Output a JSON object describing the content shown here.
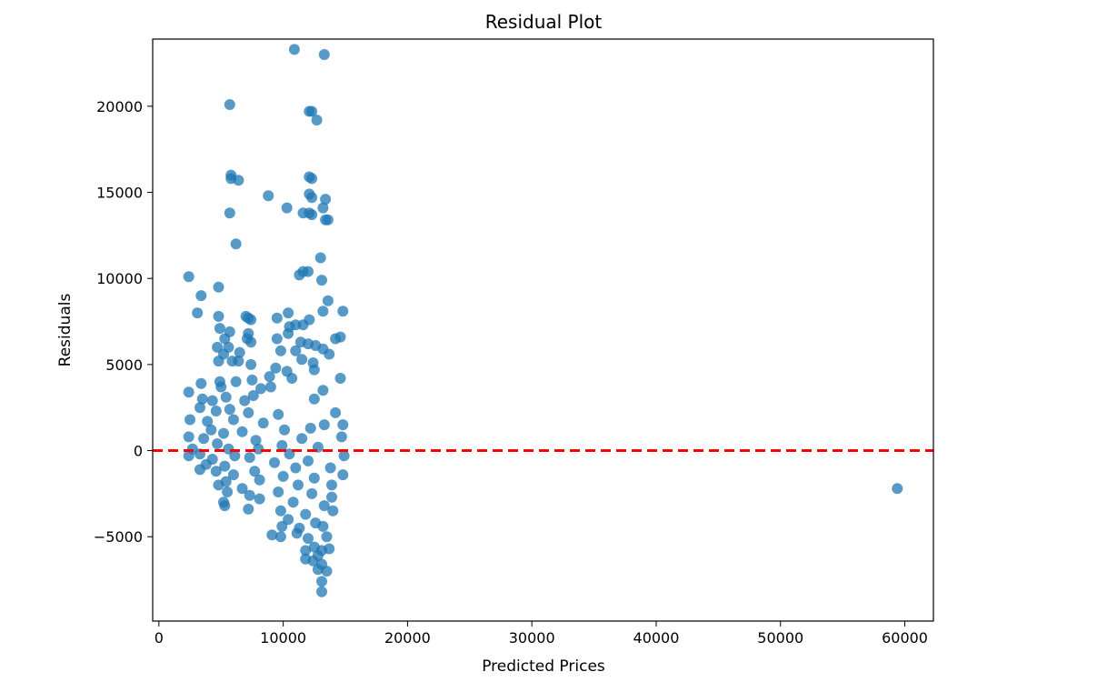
{
  "chart_data": {
    "type": "scatter",
    "title": "Residual Plot",
    "xlabel": "Predicted Prices",
    "ylabel": "Residuals",
    "xlim": [
      -500,
      62300
    ],
    "ylim": [
      -9900,
      23900
    ],
    "xticks": [
      {
        "value": 0,
        "label": "0"
      },
      {
        "value": 10000,
        "label": "10000"
      },
      {
        "value": 20000,
        "label": "20000"
      },
      {
        "value": 30000,
        "label": "30000"
      },
      {
        "value": 40000,
        "label": "40000"
      },
      {
        "value": 50000,
        "label": "50000"
      },
      {
        "value": 60000,
        "label": "60000"
      }
    ],
    "yticks": [
      {
        "value": -5000,
        "label": "−5000"
      },
      {
        "value": 0,
        "label": "0"
      },
      {
        "value": 5000,
        "label": "5000"
      },
      {
        "value": 10000,
        "label": "10000"
      },
      {
        "value": 15000,
        "label": "15000"
      },
      {
        "value": 20000,
        "label": "20000"
      }
    ],
    "grid": false,
    "reference_line": {
      "y": 0,
      "style": "dashed",
      "color": "#ff0000"
    },
    "series": [
      {
        "color": "#1f77b4",
        "points": [
          [
            10900,
            23300
          ],
          [
            13300,
            23000
          ],
          [
            5700,
            20100
          ],
          [
            12100,
            19700
          ],
          [
            12300,
            19700
          ],
          [
            12700,
            19200
          ],
          [
            5800,
            16000
          ],
          [
            5800,
            15800
          ],
          [
            6400,
            15700
          ],
          [
            12100,
            15900
          ],
          [
            12300,
            15800
          ],
          [
            8800,
            14800
          ],
          [
            12100,
            14900
          ],
          [
            12300,
            14700
          ],
          [
            13400,
            14600
          ],
          [
            10300,
            14100
          ],
          [
            13200,
            14100
          ],
          [
            5700,
            13800
          ],
          [
            11600,
            13800
          ],
          [
            12100,
            13800
          ],
          [
            12300,
            13700
          ],
          [
            13400,
            13400
          ],
          [
            13600,
            13400
          ],
          [
            6200,
            12000
          ],
          [
            13000,
            11200
          ],
          [
            12000,
            10400
          ],
          [
            11600,
            10400
          ],
          [
            11300,
            10200
          ],
          [
            2400,
            10100
          ],
          [
            13100,
            9900
          ],
          [
            4800,
            9500
          ],
          [
            3400,
            9000
          ],
          [
            13600,
            8700
          ],
          [
            13200,
            8100
          ],
          [
            14800,
            8100
          ],
          [
            3100,
            8000
          ],
          [
            10400,
            8000
          ],
          [
            4800,
            7800
          ],
          [
            7000,
            7800
          ],
          [
            7200,
            7700
          ],
          [
            9500,
            7700
          ],
          [
            7400,
            7600
          ],
          [
            12100,
            7600
          ],
          [
            11000,
            7300
          ],
          [
            11600,
            7300
          ],
          [
            10500,
            7200
          ],
          [
            4900,
            7100
          ],
          [
            5700,
            6900
          ],
          [
            7200,
            6800
          ],
          [
            10400,
            6800
          ],
          [
            14600,
            6600
          ],
          [
            5300,
            6500
          ],
          [
            7100,
            6500
          ],
          [
            9500,
            6500
          ],
          [
            14200,
            6500
          ],
          [
            11400,
            6300
          ],
          [
            7400,
            6300
          ],
          [
            12000,
            6200
          ],
          [
            12600,
            6100
          ],
          [
            4700,
            6000
          ],
          [
            5600,
            6000
          ],
          [
            13200,
            5900
          ],
          [
            9800,
            5800
          ],
          [
            11000,
            5800
          ],
          [
            6500,
            5700
          ],
          [
            5200,
            5600
          ],
          [
            13700,
            5600
          ],
          [
            4800,
            5200
          ],
          [
            5900,
            5200
          ],
          [
            6400,
            5200
          ],
          [
            11500,
            5300
          ],
          [
            12400,
            5100
          ],
          [
            7400,
            5000
          ],
          [
            9400,
            4800
          ],
          [
            10300,
            4600
          ],
          [
            12500,
            4700
          ],
          [
            8900,
            4300
          ],
          [
            14600,
            4200
          ],
          [
            4900,
            4000
          ],
          [
            6200,
            4000
          ],
          [
            7500,
            4100
          ],
          [
            3400,
            3900
          ],
          [
            10700,
            4200
          ],
          [
            5000,
            3700
          ],
          [
            8200,
            3600
          ],
          [
            9000,
            3700
          ],
          [
            13200,
            3500
          ],
          [
            2400,
            3400
          ],
          [
            7600,
            3200
          ],
          [
            3500,
            3000
          ],
          [
            5400,
            3100
          ],
          [
            4300,
            2900
          ],
          [
            6900,
            2900
          ],
          [
            12500,
            3000
          ],
          [
            3300,
            2500
          ],
          [
            5700,
            2400
          ],
          [
            4600,
            2300
          ],
          [
            7200,
            2200
          ],
          [
            14200,
            2200
          ],
          [
            9600,
            2100
          ],
          [
            2500,
            1800
          ],
          [
            3900,
            1700
          ],
          [
            6000,
            1800
          ],
          [
            8400,
            1600
          ],
          [
            13300,
            1500
          ],
          [
            14800,
            1500
          ],
          [
            4200,
            1200
          ],
          [
            5200,
            1000
          ],
          [
            6700,
            1100
          ],
          [
            10100,
            1200
          ],
          [
            12200,
            1300
          ],
          [
            2400,
            800
          ],
          [
            3600,
            700
          ],
          [
            7800,
            600
          ],
          [
            11500,
            700
          ],
          [
            14700,
            800
          ],
          [
            4700,
            400
          ],
          [
            9900,
            300
          ],
          [
            2700,
            100
          ],
          [
            5600,
            100
          ],
          [
            12800,
            200
          ],
          [
            8000,
            100
          ],
          [
            3300,
            -200
          ],
          [
            6100,
            -300
          ],
          [
            10500,
            -200
          ],
          [
            2400,
            -300
          ],
          [
            14900,
            -300
          ],
          [
            4300,
            -500
          ],
          [
            7300,
            -400
          ],
          [
            12000,
            -600
          ],
          [
            3800,
            -800
          ],
          [
            9300,
            -700
          ],
          [
            5300,
            -900
          ],
          [
            3300,
            -1100
          ],
          [
            11000,
            -1000
          ],
          [
            13800,
            -1000
          ],
          [
            4600,
            -1200
          ],
          [
            7700,
            -1200
          ],
          [
            14800,
            -1400
          ],
          [
            6000,
            -1400
          ],
          [
            10000,
            -1500
          ],
          [
            12500,
            -1600
          ],
          [
            5400,
            -1800
          ],
          [
            8100,
            -1700
          ],
          [
            4800,
            -2000
          ],
          [
            11200,
            -2000
          ],
          [
            13900,
            -2000
          ],
          [
            6700,
            -2200
          ],
          [
            5500,
            -2400
          ],
          [
            9600,
            -2400
          ],
          [
            12300,
            -2500
          ],
          [
            7300,
            -2600
          ],
          [
            13900,
            -2700
          ],
          [
            5200,
            -3000
          ],
          [
            8100,
            -2800
          ],
          [
            10800,
            -3000
          ],
          [
            5300,
            -3200
          ],
          [
            7200,
            -3400
          ],
          [
            13300,
            -3200
          ],
          [
            9800,
            -3500
          ],
          [
            11800,
            -3700
          ],
          [
            14000,
            -3500
          ],
          [
            10400,
            -4000
          ],
          [
            12600,
            -4200
          ],
          [
            9900,
            -4400
          ],
          [
            11300,
            -4500
          ],
          [
            13200,
            -4400
          ],
          [
            9100,
            -4900
          ],
          [
            9800,
            -5000
          ],
          [
            11100,
            -4800
          ],
          [
            12000,
            -5100
          ],
          [
            13500,
            -5000
          ],
          [
            12500,
            -5600
          ],
          [
            11800,
            -5800
          ],
          [
            13100,
            -5800
          ],
          [
            13700,
            -5700
          ],
          [
            12800,
            -6100
          ],
          [
            11800,
            -6300
          ],
          [
            12400,
            -6400
          ],
          [
            13100,
            -6600
          ],
          [
            12800,
            -6900
          ],
          [
            13500,
            -7000
          ],
          [
            13100,
            -7600
          ],
          [
            13100,
            -8200
          ],
          [
            59400,
            -2200
          ]
        ]
      }
    ]
  }
}
